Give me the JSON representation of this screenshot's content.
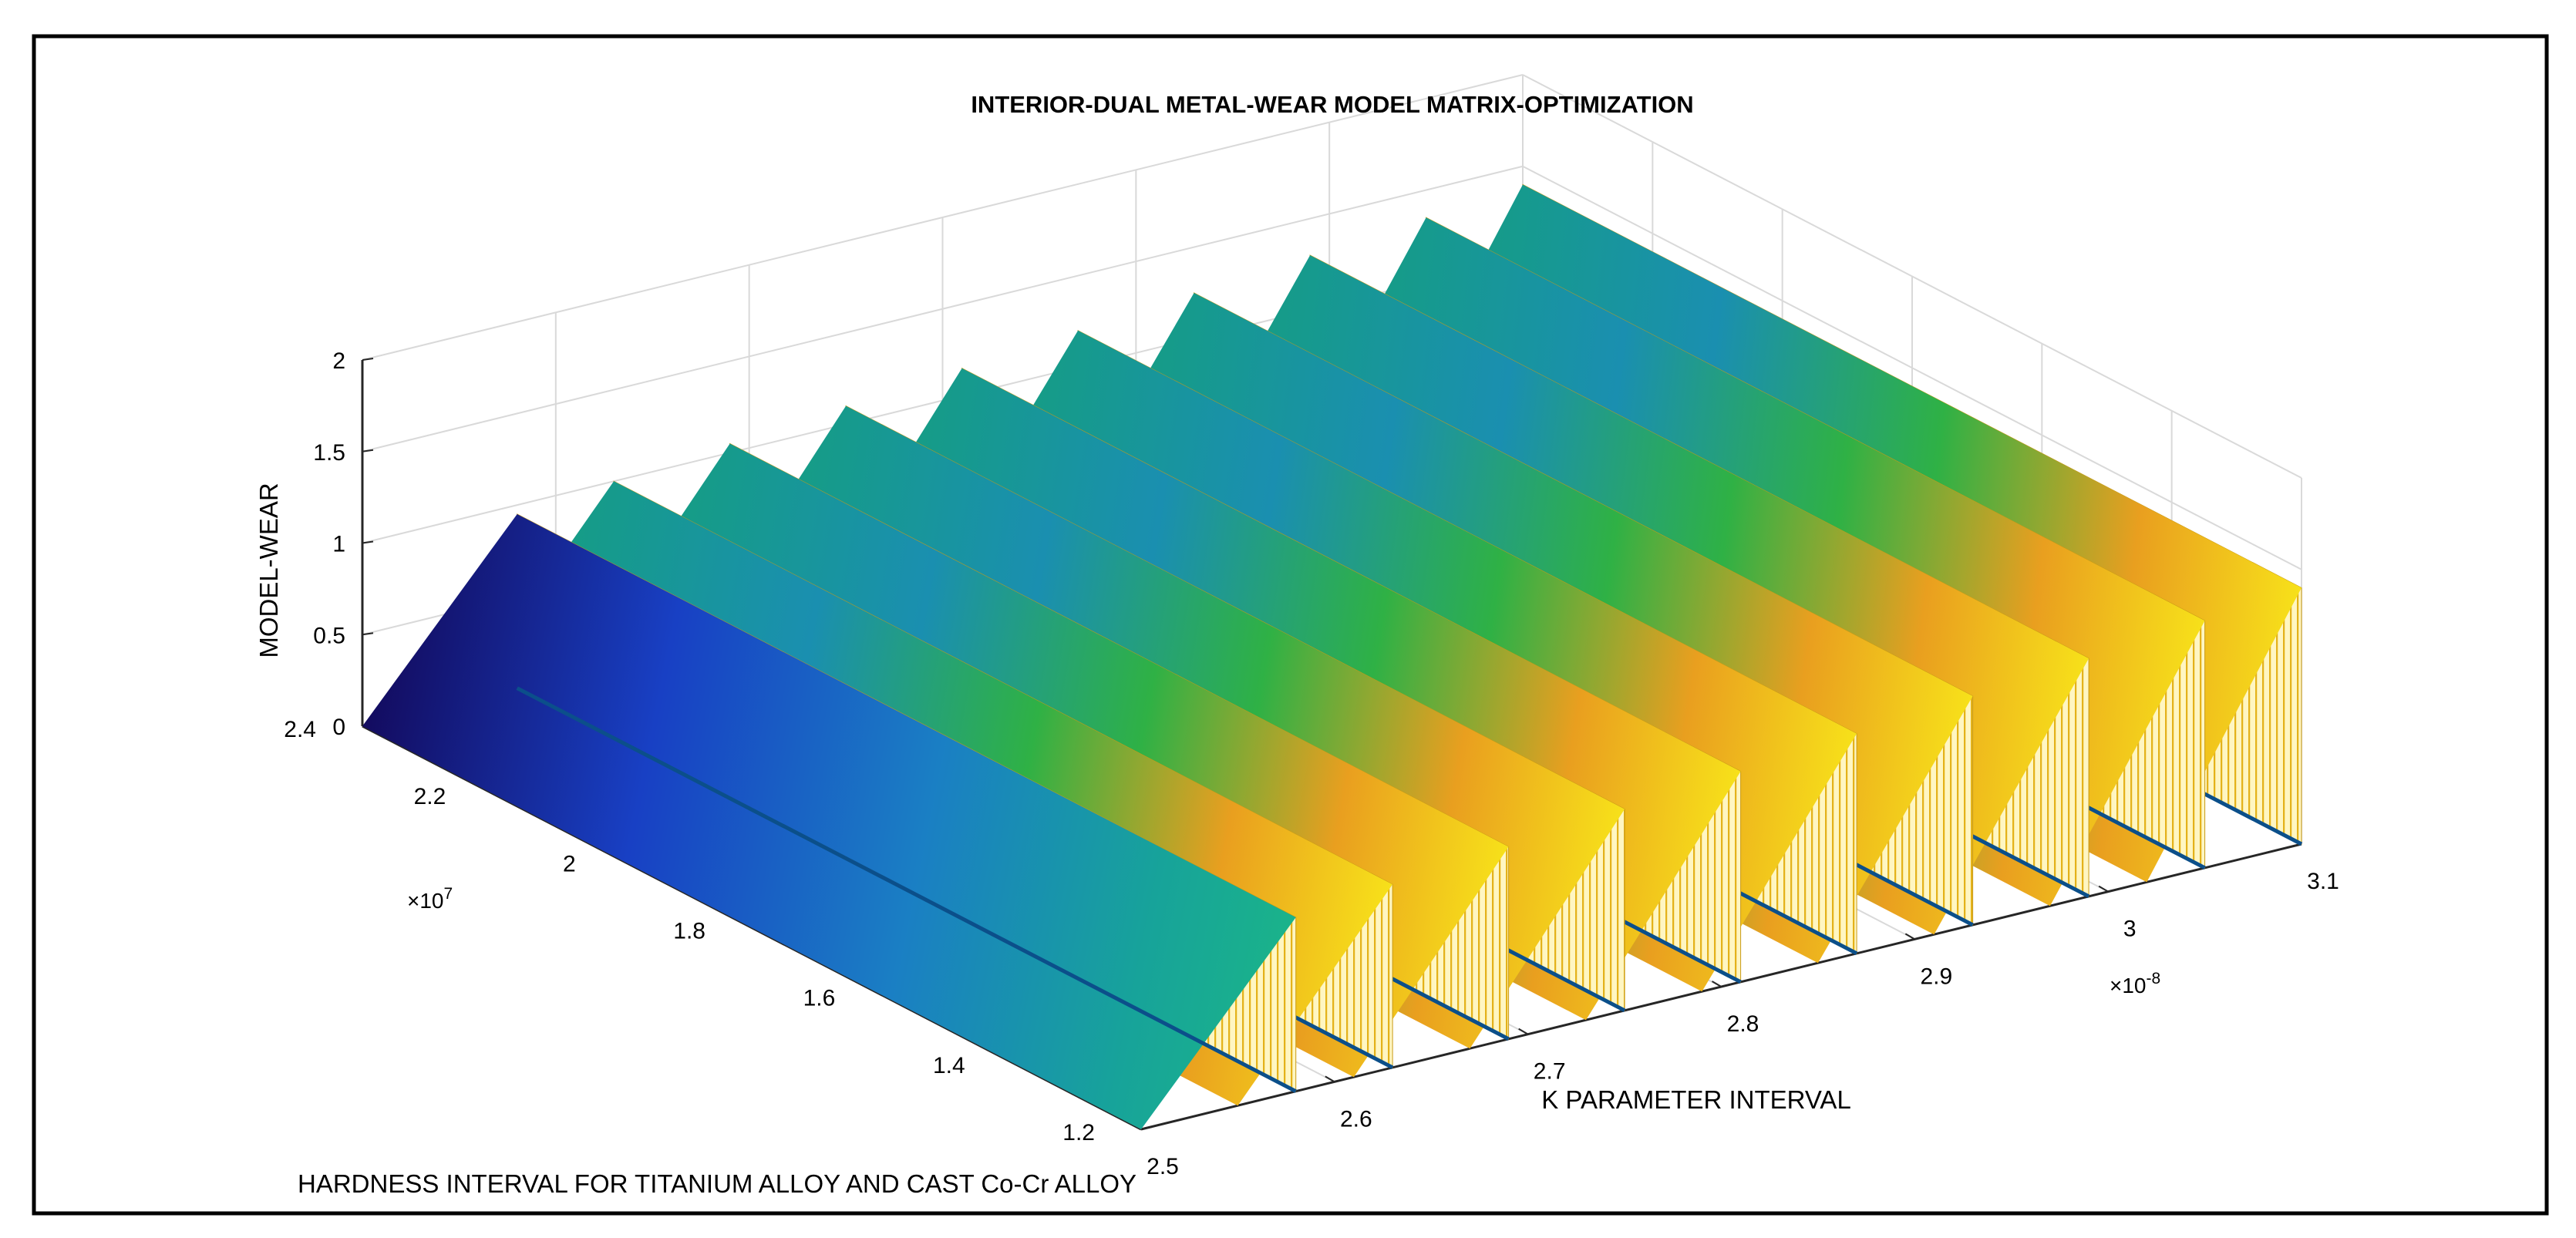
{
  "chart_data": {
    "type": "surface3d",
    "title": "INTERIOR-DUAL METAL-WEAR MODEL MATRIX-OPTIMIZATION",
    "xlabel": "K PARAMETER INTERVAL",
    "ylabel": "HARDNESS INTERVAL FOR TITANIUM ALLOY AND CAST Co-Cr ALLOY",
    "zlabel": "MODEL-WEAR",
    "xlim": [
      2.5e-08,
      3.1e-08
    ],
    "ylim": [
      12000000.0,
      24000000.0
    ],
    "zlim": [
      0,
      2
    ],
    "x_ticks": [
      "2.5",
      "2.6",
      "2.7",
      "2.8",
      "2.9",
      "3",
      "3.1"
    ],
    "x_multiplier": "×10",
    "x_exponent": "-8",
    "y_ticks": [
      "1.2",
      "1.4",
      "1.6",
      "1.8",
      "2",
      "2.2",
      "2.4"
    ],
    "y_multiplier": "×10",
    "y_exponent": "7",
    "z_ticks": [
      "0",
      "0.5",
      "1",
      "1.5",
      "2"
    ],
    "grid": true,
    "colormap": "parula",
    "series": [
      {
        "x_start": 2.5e-08,
        "x_end": 2.58e-08,
        "y_range": [
          12000000.0,
          24000000.0
        ],
        "z_at_low_y": 0.0,
        "z_at_high_y": 0.95,
        "z_peak": 0.95,
        "z_floor": 0.0
      },
      {
        "x_start": 2.55e-08,
        "x_end": 2.63e-08,
        "y_range": [
          12000000.0,
          24000000.0
        ],
        "z_at_low_y": 1.0,
        "z_at_high_y": 1.0,
        "z_peak": 1.0,
        "z_floor": 0.0
      },
      {
        "x_start": 2.61e-08,
        "x_end": 2.69e-08,
        "y_range": [
          12000000.0,
          24000000.0
        ],
        "z_at_low_y": 1.05,
        "z_at_high_y": 1.05,
        "z_peak": 1.05,
        "z_floor": 0.0
      },
      {
        "x_start": 2.67e-08,
        "x_end": 2.75e-08,
        "y_range": [
          12000000.0,
          24000000.0
        ],
        "z_at_low_y": 1.1,
        "z_at_high_y": 1.1,
        "z_peak": 1.1,
        "z_floor": 0.0
      },
      {
        "x_start": 2.73e-08,
        "x_end": 2.81e-08,
        "y_range": [
          12000000.0,
          24000000.0
        ],
        "z_at_low_y": 1.15,
        "z_at_high_y": 1.15,
        "z_peak": 1.15,
        "z_floor": 0.0
      },
      {
        "x_start": 2.79e-08,
        "x_end": 2.87e-08,
        "y_range": [
          12000000.0,
          24000000.0
        ],
        "z_at_low_y": 1.2,
        "z_at_high_y": 1.2,
        "z_peak": 1.2,
        "z_floor": 0.0
      },
      {
        "x_start": 2.85e-08,
        "x_end": 2.93e-08,
        "y_range": [
          12000000.0,
          24000000.0
        ],
        "z_at_low_y": 1.25,
        "z_at_high_y": 1.25,
        "z_peak": 1.25,
        "z_floor": 0.0
      },
      {
        "x_start": 2.91e-08,
        "x_end": 2.99e-08,
        "y_range": [
          12000000.0,
          24000000.0
        ],
        "z_at_low_y": 1.3,
        "z_at_high_y": 1.3,
        "z_peak": 1.3,
        "z_floor": 0.0
      },
      {
        "x_start": 2.97e-08,
        "x_end": 3.05e-08,
        "y_range": [
          12000000.0,
          24000000.0
        ],
        "z_at_low_y": 1.35,
        "z_at_high_y": 1.35,
        "z_peak": 1.35,
        "z_floor": 0.0
      },
      {
        "x_start": 3.02e-08,
        "x_end": 3.1e-08,
        "y_range": [
          12000000.0,
          24000000.0
        ],
        "z_at_low_y": 1.4,
        "z_at_high_y": 1.4,
        "z_peak": 1.4,
        "z_floor": 0.0
      }
    ]
  }
}
